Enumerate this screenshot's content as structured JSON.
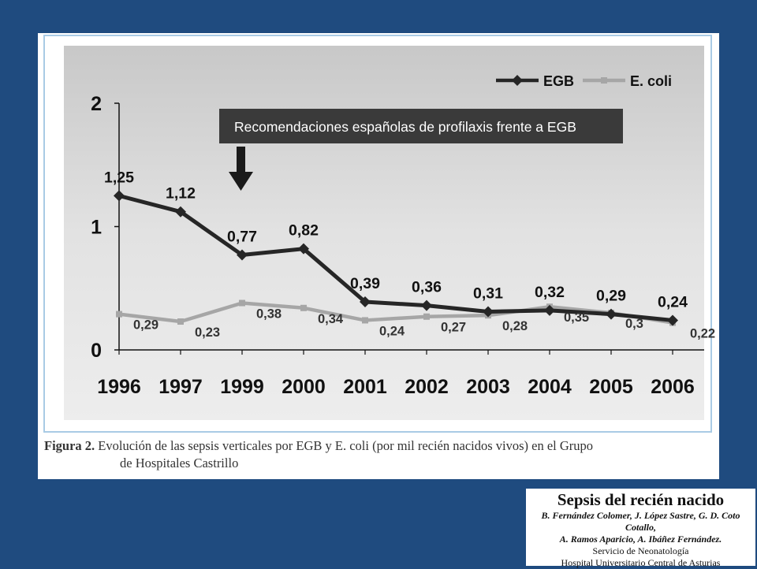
{
  "chart_data": {
    "type": "line",
    "categories": [
      "1996",
      "1997",
      "1999",
      "2000",
      "2001",
      "2002",
      "2003",
      "2004",
      "2005",
      "2006"
    ],
    "series": [
      {
        "name": "EGB",
        "color": "#262626",
        "marker": "diamond",
        "values": [
          1.25,
          1.12,
          0.77,
          0.82,
          0.39,
          0.36,
          0.31,
          0.32,
          0.29,
          0.24
        ],
        "labels": [
          "1,25",
          "1,12",
          "0,77",
          "0,82",
          "0,39",
          "0,36",
          "0,31",
          "0,32",
          "0,29",
          "0,24"
        ]
      },
      {
        "name": "E. coli",
        "color": "#a6a6a6",
        "marker": "square",
        "values": [
          0.29,
          0.23,
          0.38,
          0.34,
          0.24,
          0.27,
          0.28,
          0.35,
          0.3,
          0.22
        ],
        "labels": [
          "0,29",
          "0,23",
          "0,38",
          "0,34",
          "0,24",
          "0,27",
          "0,28",
          "0,35",
          "0,3",
          "0,22"
        ]
      }
    ],
    "yticks": [
      "0",
      "1",
      "2"
    ],
    "ylim": [
      0,
      2
    ],
    "grid": false,
    "legend": "top-right",
    "annotation": "Recomendaciones españolas de profilaxis frente a EGB",
    "title": "",
    "xlabel": "",
    "ylabel": ""
  },
  "caption": {
    "label": "Figura 2.",
    "line1": "Evolución de las sepsis verticales por EGB y E. coli (por mil recién nacidos vivos) en el Grupo",
    "line2": "de Hospitales Castrillo"
  },
  "attribution": {
    "title": "Sepsis del recién nacido",
    "authors1": "B. Fernández Colomer, J. López Sastre, G. D. Coto Cotallo,",
    "authors2": "A. Ramos Aparicio, A. Ibáñez Fernández.",
    "dept": "Servicio de Neonatología",
    "hospital": "Hospital Universitario Central de Asturias"
  },
  "colors": {
    "background": "#1f4b7f",
    "frame": "#a9cbe5",
    "annotation_box": "#3a3a3a"
  }
}
